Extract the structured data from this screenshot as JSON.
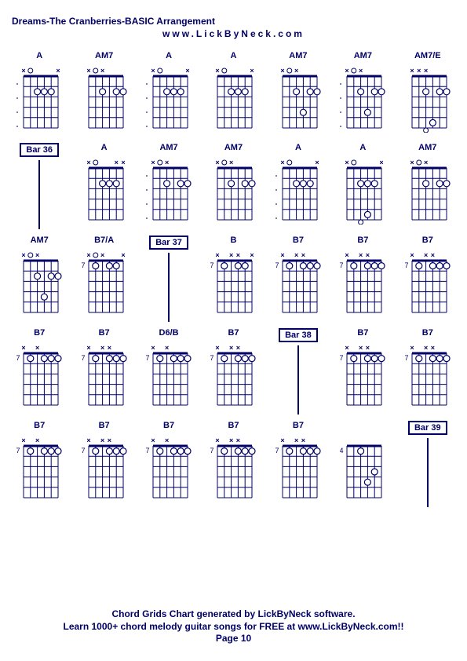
{
  "title": "Dreams-The Cranberries-BASIC Arrangement",
  "subtitle": "www.LickByNeck.com",
  "footer_line1": "Chord Grids Chart generated by LickByNeck software.",
  "footer_line2": "Learn 1000+ chord melody guitar songs for FREE at www.LickByNeck.com!!",
  "page_label": "Page 10",
  "colors": {
    "text": "#000066",
    "line": "#000066",
    "bg": "#ffffff"
  },
  "cells": [
    {
      "type": "chord",
      "label": "A",
      "markers": [
        "X",
        "O",
        "",
        "",
        "",
        "X"
      ],
      "dots": [
        [
          2,
          2
        ],
        [
          2,
          3
        ],
        [
          2,
          4
        ]
      ],
      "fret": null,
      "dash": "left"
    },
    {
      "type": "chord",
      "label": "AM7",
      "markers": [
        "X",
        "O",
        "X",
        "",
        "",
        ""
      ],
      "dots": [
        [
          2,
          2
        ],
        [
          2,
          4
        ],
        [
          2,
          5
        ]
      ],
      "fret": null
    },
    {
      "type": "chord",
      "label": "A",
      "markers": [
        "X",
        "O",
        "",
        "",
        "",
        "X"
      ],
      "dots": [
        [
          2,
          2
        ],
        [
          2,
          3
        ],
        [
          2,
          4
        ]
      ],
      "fret": null,
      "dash": "left"
    },
    {
      "type": "chord",
      "label": "A",
      "markers": [
        "X",
        "O",
        "",
        "",
        "",
        "X"
      ],
      "dots": [
        [
          2,
          2
        ],
        [
          2,
          3
        ],
        [
          2,
          4
        ]
      ],
      "fret": null
    },
    {
      "type": "chord",
      "label": "AM7",
      "markers": [
        "X",
        "O",
        "X",
        "",
        "",
        ""
      ],
      "dots": [
        [
          2,
          2
        ],
        [
          2,
          4
        ],
        [
          2,
          5
        ],
        [
          4,
          3
        ]
      ],
      "fret": null
    },
    {
      "type": "chord",
      "label": "AM7",
      "markers": [
        "X",
        "O",
        "X",
        "",
        "",
        ""
      ],
      "dots": [
        [
          2,
          2
        ],
        [
          2,
          4
        ],
        [
          2,
          5
        ],
        [
          4,
          3
        ]
      ],
      "fret": null,
      "dash": "left"
    },
    {
      "type": "chord",
      "label": "AM7/E",
      "markers": [
        "X",
        "X",
        "X",
        "",
        "",
        ""
      ],
      "dots": [
        [
          2,
          2
        ],
        [
          2,
          4
        ],
        [
          2,
          5
        ],
        [
          5,
          3
        ]
      ],
      "fret": null,
      "openBottom": true
    },
    {
      "type": "bar",
      "label": "Bar 36"
    },
    {
      "type": "chord",
      "label": "A",
      "markers": [
        "X",
        "O",
        "",
        "",
        "X",
        "X"
      ],
      "dots": [
        [
          2,
          2
        ],
        [
          2,
          3
        ],
        [
          2,
          4
        ]
      ],
      "fret": null
    },
    {
      "type": "chord",
      "label": "AM7",
      "markers": [
        "X",
        "O",
        "X",
        "",
        "",
        ""
      ],
      "dots": [
        [
          2,
          2
        ],
        [
          2,
          4
        ],
        [
          2,
          5
        ]
      ],
      "fret": null,
      "dash": "left"
    },
    {
      "type": "chord",
      "label": "AM7",
      "markers": [
        "X",
        "O",
        "X",
        "",
        "",
        ""
      ],
      "dots": [
        [
          2,
          2
        ],
        [
          2,
          4
        ],
        [
          2,
          5
        ]
      ],
      "fret": null
    },
    {
      "type": "chord",
      "label": "A",
      "markers": [
        "X",
        "O",
        "",
        "",
        "",
        "X"
      ],
      "dots": [
        [
          2,
          2
        ],
        [
          2,
          3
        ],
        [
          2,
          4
        ]
      ],
      "fret": null,
      "dash": "left"
    },
    {
      "type": "chord",
      "label": "A",
      "markers": [
        "X",
        "O",
        "",
        "",
        "",
        "X"
      ],
      "dots": [
        [
          2,
          2
        ],
        [
          2,
          3
        ],
        [
          2,
          4
        ],
        [
          5,
          3
        ]
      ],
      "fret": null,
      "openBottom": true
    },
    {
      "type": "chord",
      "label": "AM7",
      "markers": [
        "X",
        "O",
        "X",
        "",
        "",
        ""
      ],
      "dots": [
        [
          2,
          2
        ],
        [
          2,
          4
        ],
        [
          2,
          5
        ]
      ],
      "fret": null
    },
    {
      "type": "chord",
      "label": "AM7",
      "markers": [
        "X",
        "O",
        "X",
        "",
        "",
        ""
      ],
      "dots": [
        [
          2,
          2
        ],
        [
          2,
          4
        ],
        [
          2,
          5
        ],
        [
          4,
          3
        ]
      ],
      "fret": null
    },
    {
      "type": "chord",
      "label": "B7/A",
      "markers": [
        "X",
        "O",
        "X",
        "",
        "",
        "X"
      ],
      "dots": [
        [
          1,
          1
        ],
        [
          1,
          3
        ],
        [
          1,
          4
        ]
      ],
      "fret": "7"
    },
    {
      "type": "bar",
      "label": "Bar 37"
    },
    {
      "type": "chord",
      "label": "B",
      "markers": [
        "X",
        "",
        "X",
        "X",
        "",
        "X"
      ],
      "dots": [
        [
          1,
          1
        ],
        [
          1,
          3
        ],
        [
          1,
          4
        ]
      ],
      "fret": "7"
    },
    {
      "type": "chord",
      "label": "B7",
      "markers": [
        "X",
        "",
        "X",
        "X",
        "",
        ""
      ],
      "dots": [
        [
          1,
          1
        ],
        [
          1,
          3
        ],
        [
          1,
          4
        ],
        [
          1,
          5
        ]
      ],
      "fret": "7"
    },
    {
      "type": "chord",
      "label": "B7",
      "markers": [
        "X",
        "",
        "X",
        "X",
        "",
        ""
      ],
      "dots": [
        [
          1,
          1
        ],
        [
          1,
          3
        ],
        [
          1,
          4
        ],
        [
          1,
          5
        ]
      ],
      "fret": "7"
    },
    {
      "type": "chord",
      "label": "B7",
      "markers": [
        "X",
        "",
        "X",
        "X",
        "",
        ""
      ],
      "dots": [
        [
          1,
          1
        ],
        [
          1,
          3
        ],
        [
          1,
          4
        ],
        [
          1,
          5
        ]
      ],
      "fret": "7"
    },
    {
      "type": "chord",
      "label": "B7",
      "markers": [
        "X",
        "",
        "X",
        "",
        "",
        ""
      ],
      "dots": [
        [
          1,
          1
        ],
        [
          1,
          3
        ],
        [
          1,
          4
        ],
        [
          1,
          5
        ]
      ],
      "fret": "7"
    },
    {
      "type": "chord",
      "label": "B7",
      "markers": [
        "X",
        "",
        "X",
        "X",
        "",
        ""
      ],
      "dots": [
        [
          1,
          1
        ],
        [
          1,
          3
        ],
        [
          1,
          4
        ],
        [
          1,
          5
        ]
      ],
      "fret": "7"
    },
    {
      "type": "chord",
      "label": "D6/B",
      "markers": [
        "X",
        "",
        "X",
        "",
        "",
        ""
      ],
      "dots": [
        [
          1,
          1
        ],
        [
          1,
          3
        ],
        [
          1,
          4
        ],
        [
          1,
          5
        ]
      ],
      "fret": "7"
    },
    {
      "type": "chord",
      "label": "B7",
      "markers": [
        "X",
        "",
        "X",
        "X",
        "",
        ""
      ],
      "dots": [
        [
          1,
          1
        ],
        [
          1,
          3
        ],
        [
          1,
          4
        ],
        [
          1,
          5
        ]
      ],
      "fret": "7"
    },
    {
      "type": "bar",
      "label": "Bar 38"
    },
    {
      "type": "chord",
      "label": "B7",
      "markers": [
        "X",
        "",
        "X",
        "X",
        "",
        ""
      ],
      "dots": [
        [
          1,
          1
        ],
        [
          1,
          3
        ],
        [
          1,
          4
        ],
        [
          1,
          5
        ]
      ],
      "fret": "7"
    },
    {
      "type": "chord",
      "label": "B7",
      "markers": [
        "X",
        "",
        "X",
        "X",
        "",
        ""
      ],
      "dots": [
        [
          1,
          1
        ],
        [
          1,
          3
        ],
        [
          1,
          4
        ],
        [
          1,
          5
        ]
      ],
      "fret": "7"
    },
    {
      "type": "chord",
      "label": "B7",
      "markers": [
        "X",
        "",
        "X",
        "",
        "",
        ""
      ],
      "dots": [
        [
          1,
          1
        ],
        [
          1,
          3
        ],
        [
          1,
          4
        ],
        [
          1,
          5
        ]
      ],
      "fret": "7"
    },
    {
      "type": "chord",
      "label": "B7",
      "markers": [
        "X",
        "",
        "X",
        "X",
        "",
        ""
      ],
      "dots": [
        [
          1,
          1
        ],
        [
          1,
          3
        ],
        [
          1,
          4
        ],
        [
          1,
          5
        ]
      ],
      "fret": "7"
    },
    {
      "type": "chord",
      "label": "B7",
      "markers": [
        "X",
        "",
        "X",
        "",
        "",
        ""
      ],
      "dots": [
        [
          1,
          1
        ],
        [
          1,
          3
        ],
        [
          1,
          4
        ],
        [
          1,
          5
        ]
      ],
      "fret": "7"
    },
    {
      "type": "chord",
      "label": "B7",
      "markers": [
        "X",
        "",
        "X",
        "X",
        "",
        ""
      ],
      "dots": [
        [
          1,
          1
        ],
        [
          1,
          3
        ],
        [
          1,
          4
        ],
        [
          1,
          5
        ]
      ],
      "fret": "7"
    },
    {
      "type": "chord",
      "label": "B7",
      "markers": [
        "X",
        "",
        "X",
        "X",
        "",
        ""
      ],
      "dots": [
        [
          1,
          1
        ],
        [
          1,
          3
        ],
        [
          1,
          4
        ],
        [
          1,
          5
        ]
      ],
      "fret": "7"
    },
    {
      "type": "chord",
      "label": "",
      "markers": [
        "",
        "",
        "",
        "",
        "",
        ""
      ],
      "dots": [
        [
          1,
          2
        ],
        [
          3,
          4
        ],
        [
          4,
          3
        ]
      ],
      "fret": "4"
    },
    {
      "type": "bar",
      "label": "Bar 39"
    }
  ]
}
